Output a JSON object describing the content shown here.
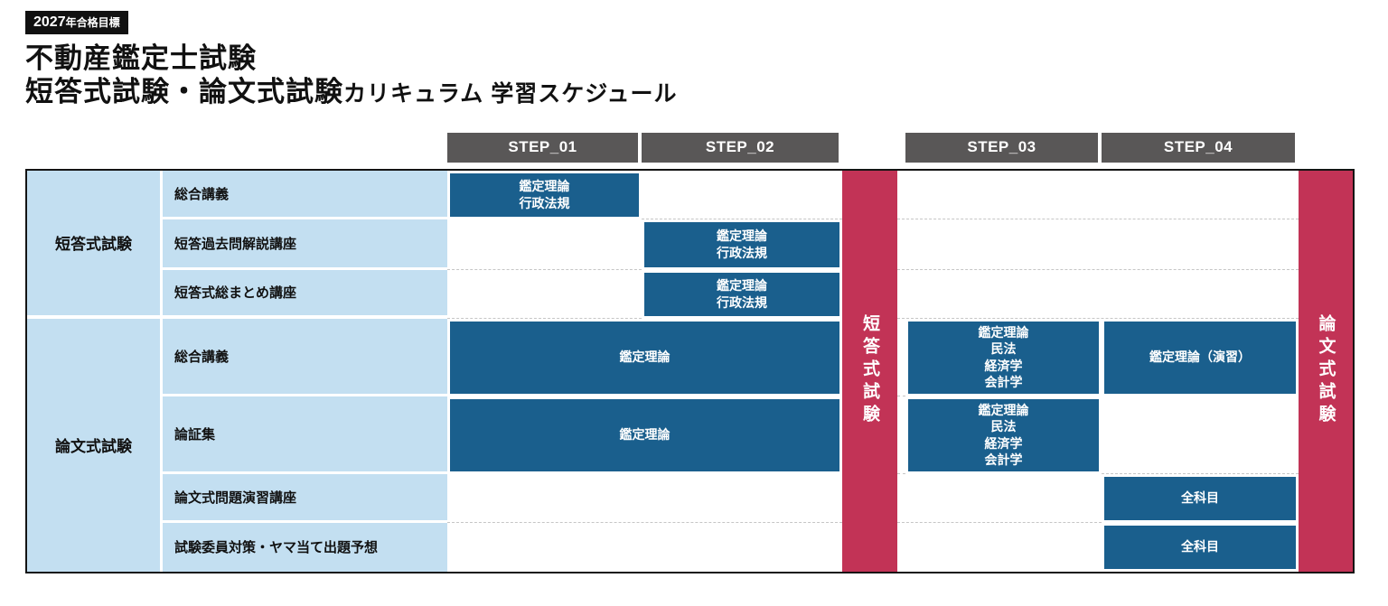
{
  "header": {
    "badge_year": "2027",
    "badge_rest": "年合格目標",
    "title": "不動産鑑定士試験",
    "subtitle_main": "短答式試験・論文式試験",
    "subtitle_sub": "カリキュラム 学習スケジュール"
  },
  "steps": [
    "STEP_01",
    "STEP_02",
    "STEP_03",
    "STEP_04"
  ],
  "bars": {
    "short_answer": "短答式試験",
    "essay": "論文式試験"
  },
  "groups": [
    {
      "label": "短答式試験",
      "rows": [
        "総合講義",
        "短答過去問解説講座",
        "短答式総まとめ講座"
      ]
    },
    {
      "label": "論文式試験",
      "rows": [
        "総合講義",
        "論証集",
        "論文式問題演習講座",
        "試験委員対策・ヤマ当て出題予想"
      ]
    }
  ],
  "cells": {
    "r1_s1": "鑑定理論\n行政法規",
    "r2_s2": "鑑定理論\n行政法規",
    "r3_s2": "鑑定理論\n行政法規",
    "r4_s12": "鑑定理論",
    "r4_s3": "鑑定理論\n民法\n経済学\n会計学",
    "r4_s4": "鑑定理論（演習）",
    "r5_s12": "鑑定理論",
    "r5_s3": "鑑定理論\n民法\n経済学\n会計学",
    "r6_s4": "全科目",
    "r7_s4": "全科目"
  },
  "colors": {
    "cell_blue": "#1A5F8D",
    "label_light_blue": "#C3DFF1",
    "bar_red": "#C23356",
    "step_gray": "#595757",
    "badge_black": "#111111"
  }
}
